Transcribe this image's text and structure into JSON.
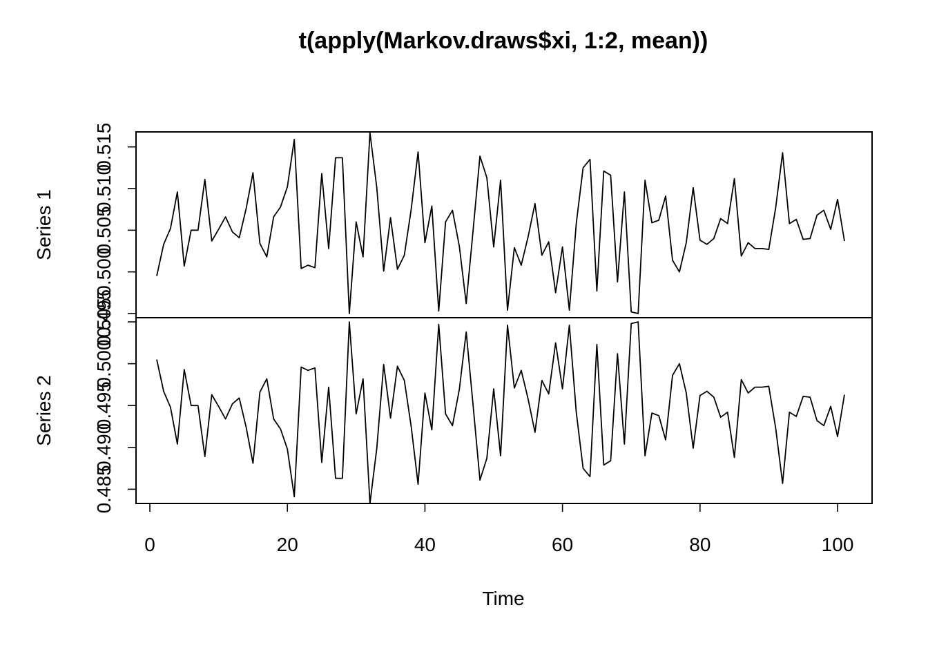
{
  "chart_data": {
    "type": "line",
    "title": "t(apply(Markov.draws$xi, 1:2, mean))",
    "xlabel": "Time",
    "xlim": [
      1,
      101
    ],
    "x_ticks": [
      0,
      20,
      40,
      60,
      80,
      100
    ],
    "x_tick_labels": [
      "0",
      "20",
      "40",
      "60",
      "80",
      "100"
    ],
    "grid": false,
    "legend": "none",
    "colors": {
      "line": "#000000",
      "frame": "#000000",
      "background": "#ffffff"
    },
    "panels": [
      {
        "name": "Series 1",
        "ylabel": "Series 1",
        "ylim": [
          0.4945,
          0.5168
        ],
        "y_ticks": [
          0.495,
          0.5,
          0.505,
          0.51,
          0.515
        ],
        "y_tick_labels": [
          "0.495",
          "0.500",
          "0.505",
          "0.510",
          "0.515"
        ],
        "values": [
          0.4995,
          0.5033,
          0.5052,
          0.5096,
          0.5007,
          0.505,
          0.505,
          0.5111,
          0.5037,
          0.5051,
          0.5066,
          0.5048,
          0.5041,
          0.5076,
          0.5119,
          0.5034,
          0.5018,
          0.5066,
          0.5078,
          0.5102,
          0.5159,
          0.5004,
          0.5008,
          0.5005,
          0.5118,
          0.5028,
          0.5137,
          0.5137,
          0.495,
          0.506,
          0.5018,
          0.5167,
          0.5101,
          0.5001,
          0.5065,
          0.5003,
          0.502,
          0.5075,
          0.5144,
          0.5035,
          0.5079,
          0.4953,
          0.506,
          0.5074,
          0.5031,
          0.4962,
          0.505,
          0.5139,
          0.5113,
          0.503,
          0.511,
          0.4954,
          0.5029,
          0.5008,
          0.5042,
          0.5082,
          0.502,
          0.5036,
          0.4975,
          0.503,
          0.4954,
          0.5058,
          0.5125,
          0.5135,
          0.4977,
          0.5121,
          0.5116,
          0.4988,
          0.5096,
          0.4952,
          0.495,
          0.511,
          0.5059,
          0.5062,
          0.5091,
          0.5014,
          0.5,
          0.5035,
          0.5101,
          0.5038,
          0.5033,
          0.504,
          0.5064,
          0.5058,
          0.5112,
          0.5019,
          0.5035,
          0.5028,
          0.5028,
          0.5027,
          0.5077,
          0.5143,
          0.5058,
          0.5063,
          0.5039,
          0.504,
          0.5068,
          0.5074,
          0.5051,
          0.5087,
          0.5037
        ]
      },
      {
        "name": "Series 2",
        "ylabel": "Series 2",
        "ylim": [
          0.4833,
          0.5055
        ],
        "y_ticks": [
          0.485,
          0.49,
          0.495,
          0.5,
          0.505
        ],
        "y_tick_labels": [
          "0.485",
          "0.490",
          "0.495",
          "0.500",
          "0.505"
        ],
        "values": [
          0.5005,
          0.4967,
          0.4948,
          0.4904,
          0.4993,
          0.495,
          0.495,
          0.4889,
          0.4963,
          0.4949,
          0.4934,
          0.4952,
          0.4959,
          0.4924,
          0.4881,
          0.4966,
          0.4982,
          0.4934,
          0.4922,
          0.4898,
          0.4841,
          0.4996,
          0.4992,
          0.4995,
          0.4882,
          0.4972,
          0.4863,
          0.4863,
          0.505,
          0.494,
          0.4982,
          0.4833,
          0.4899,
          0.4999,
          0.4935,
          0.4997,
          0.498,
          0.4925,
          0.4856,
          0.4965,
          0.4921,
          0.5047,
          0.494,
          0.4926,
          0.4969,
          0.5038,
          0.495,
          0.4861,
          0.4887,
          0.497,
          0.489,
          0.5046,
          0.4971,
          0.4992,
          0.4958,
          0.4918,
          0.498,
          0.4964,
          0.5025,
          0.497,
          0.5046,
          0.4942,
          0.4875,
          0.4865,
          0.5023,
          0.4879,
          0.4884,
          0.5012,
          0.4904,
          0.5048,
          0.505,
          0.489,
          0.4941,
          0.4938,
          0.4909,
          0.4986,
          0.5,
          0.4965,
          0.4899,
          0.4962,
          0.4967,
          0.496,
          0.4936,
          0.4942,
          0.4888,
          0.4981,
          0.4965,
          0.4972,
          0.4972,
          0.4973,
          0.4923,
          0.4857,
          0.4942,
          0.4937,
          0.4961,
          0.496,
          0.4932,
          0.4926,
          0.4949,
          0.4913,
          0.4963
        ]
      }
    ]
  }
}
